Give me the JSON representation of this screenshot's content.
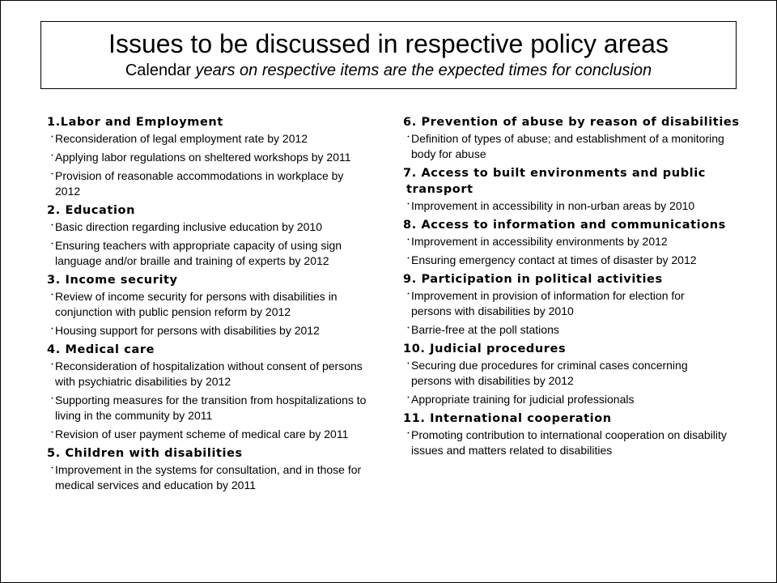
{
  "title": {
    "main": "Issues to be discussed in respective policy areas",
    "sub_prefix": "Calendar ",
    "sub_italic": "years on respective items are the expected times for conclusion"
  },
  "bullet_glyph": "・",
  "left_column": [
    {
      "heading": "1.Labor and Employment",
      "items": [
        "Reconsideration of legal employment rate by 2012",
        "Applying labor regulations on sheltered workshops by 2011",
        "Provision of reasonable accommodations in workplace by 2012"
      ]
    },
    {
      "heading": "2. Education",
      "items": [
        "Basic direction regarding inclusive education by 2010",
        "Ensuring teachers with appropriate capacity of using sign language and/or braille  and training of experts by 2012"
      ]
    },
    {
      "heading": "3. Income security",
      "items": [
        "Review of income security for persons with disabilities in conjunction with public pension reform by 2012",
        "Housing support for persons with disabilities by 2012"
      ]
    },
    {
      "heading": "4. Medical care",
      "items": [
        "Reconsideration of hospitalization without consent of persons with psychiatric disabilities by 2012",
        "Supporting measures for the transition from hospitalizations to living in the community by 2011",
        "Revision of user payment  scheme  of medical care by 2011"
      ]
    },
    {
      "heading": "5. Children with disabilities",
      "items": [
        "Improvement in the systems for consultation, and in those for medical services and education by 2011"
      ]
    }
  ],
  "right_column": [
    {
      "heading": "6. Prevention of abuse by reason of disabilities",
      "items": [
        "Definition of types of abuse; and establishment of a monitoring body for abuse"
      ]
    },
    {
      "heading_line1": "7. Access to built environments and public",
      "heading_line2": "transport",
      "items": [
        "Improvement in accessibility in non-urban areas by 2010"
      ]
    },
    {
      "heading": "8. Access to information and communications",
      "items": [
        "Improvement in accessibility environments by 2012",
        "Ensuring emergency contact at times of disaster by 2012"
      ]
    },
    {
      "heading": "9. Participation in political activities",
      "items": [
        "Improvement in provision of information for election for persons with disabilities by 2010",
        "Barrie-free at the poll stations"
      ]
    },
    {
      "heading": "10. Judicial procedures",
      "items": [
        "Securing due procedures for criminal cases concerning persons with disabilities by 2012",
        "Appropriate training for judicial professionals"
      ]
    },
    {
      "heading": "11. International cooperation",
      "items": [
        "Promoting contribution to international cooperation on disability issues and matters related to disabilities"
      ]
    }
  ]
}
